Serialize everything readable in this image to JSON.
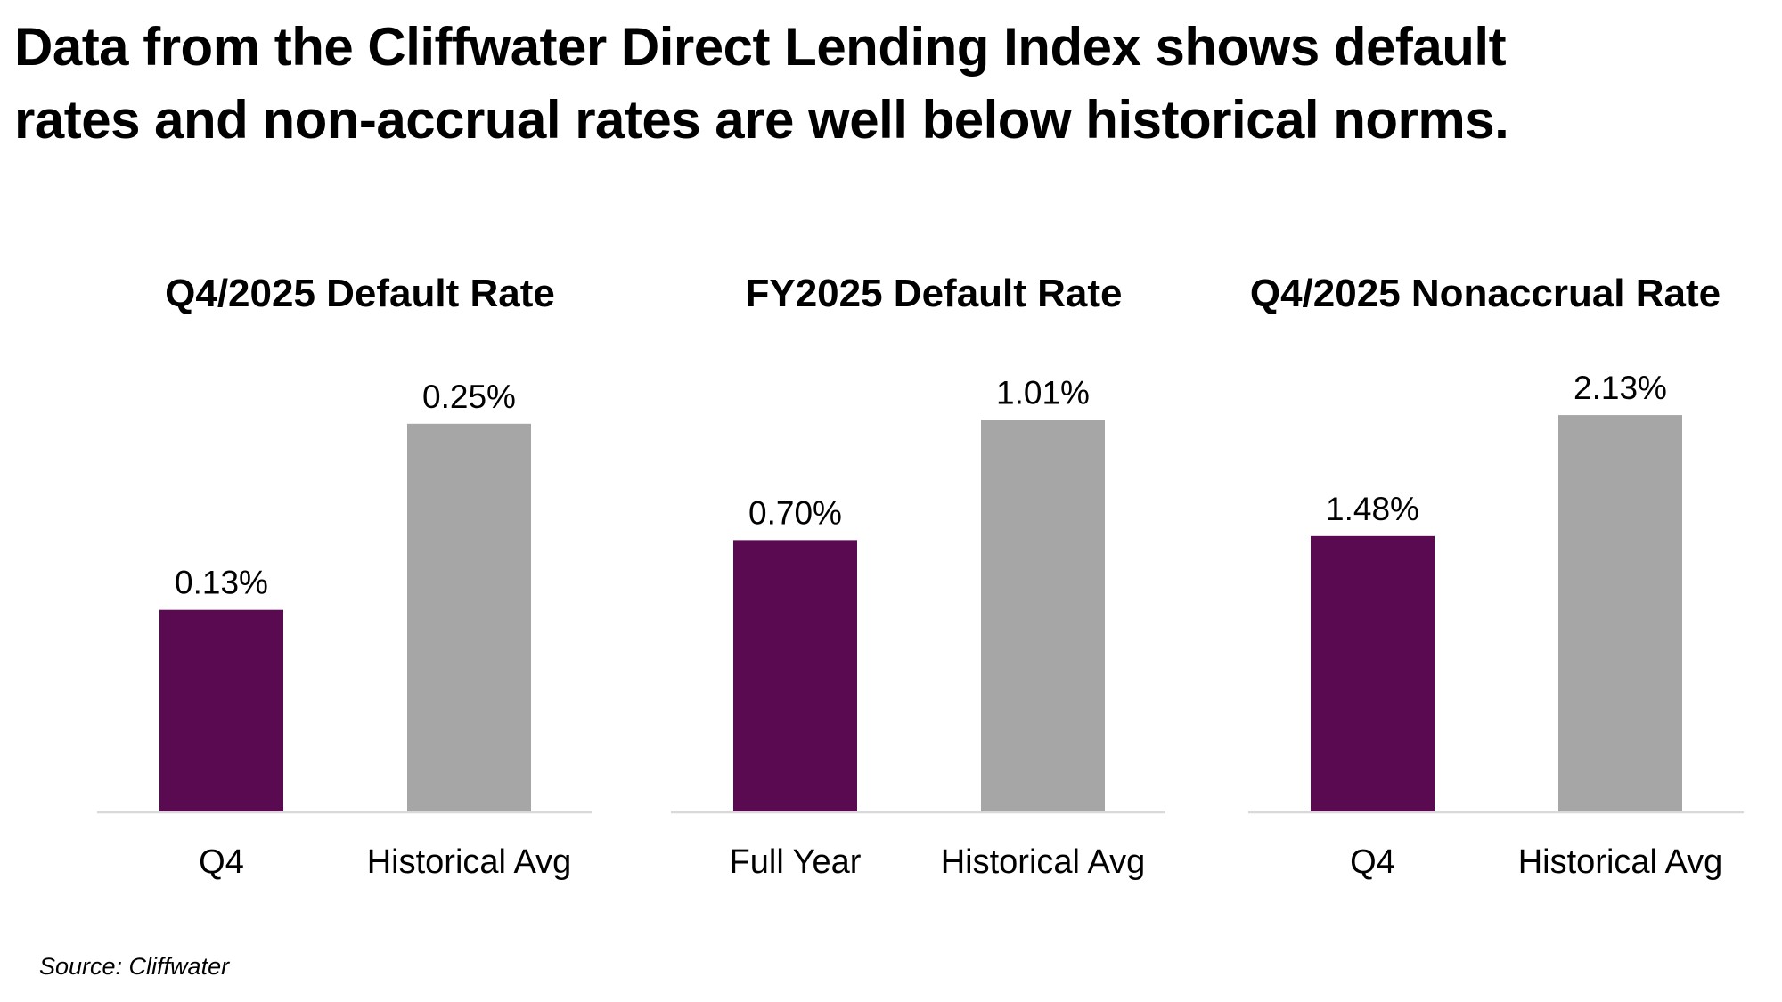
{
  "headline": {
    "line1": "Data from the Cliffwater Direct Lending Index shows default",
    "line2": "rates and non-accrual rates are well below historical norms."
  },
  "source": "Source: Cliffwater",
  "colors": {
    "primary": "#5a0a50",
    "secondary": "#a6a6a6",
    "axis": "#d9d9d9"
  },
  "chart_data": [
    {
      "type": "bar",
      "title": "Q4/2025 Default Rate",
      "categories": [
        "Q4",
        "Historical Avg"
      ],
      "values": [
        0.13,
        0.25
      ],
      "labels": [
        "0.13%",
        "0.25%"
      ],
      "ylim": [
        0,
        0.27
      ],
      "grid": false,
      "xlabel": "",
      "ylabel": ""
    },
    {
      "type": "bar",
      "title": "FY2025 Default Rate",
      "categories": [
        "Full Year",
        "Historical Avg"
      ],
      "values": [
        0.7,
        1.01
      ],
      "labels": [
        "0.70%",
        "1.01%"
      ],
      "ylim": [
        0,
        1.08
      ],
      "grid": false,
      "xlabel": "",
      "ylabel": ""
    },
    {
      "type": "bar",
      "title": "Q4/2025 Nonaccrual Rate",
      "categories": [
        "Q4",
        "Historical Avg"
      ],
      "values": [
        1.48,
        2.13
      ],
      "labels": [
        "1.48%",
        "2.13%"
      ],
      "ylim": [
        0,
        2.25
      ],
      "grid": false,
      "xlabel": "",
      "ylabel": ""
    }
  ]
}
